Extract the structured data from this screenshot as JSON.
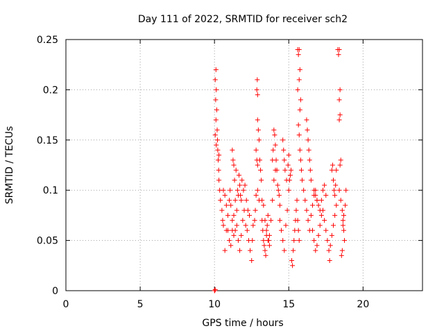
{
  "chart_data": {
    "type": "scatter",
    "title": "Day 111 of 2022, SRMTID for receiver sch2",
    "xlabel": "GPS time / hours",
    "ylabel": "SRMTID / TECUs",
    "xlim": [
      0,
      24
    ],
    "ylim": [
      0,
      0.25
    ],
    "xticks": [
      0,
      5,
      10,
      15,
      20
    ],
    "yticks": [
      0,
      0.05,
      0.1,
      0.15,
      0.2,
      0.25
    ],
    "xtick_labels": [
      "0",
      "5",
      "10",
      "15",
      "20"
    ],
    "ytick_labels": [
      "0",
      "0.05",
      "0.1",
      "0.15",
      "0.2",
      "0.25"
    ],
    "grid": true,
    "marker": "+",
    "color": "#ff0000",
    "series": [
      {
        "name": "SRMTID sch2",
        "points": [
          [
            10.0,
            0.0
          ],
          [
            10.02,
            0.0
          ],
          [
            10.05,
            0.001
          ],
          [
            10.05,
            0.21
          ],
          [
            10.08,
            0.19
          ],
          [
            10.1,
            0.22
          ],
          [
            10.12,
            0.2
          ],
          [
            10.15,
            0.18
          ],
          [
            10.18,
            0.16
          ],
          [
            10.1,
            0.17
          ],
          [
            10.2,
            0.15
          ],
          [
            10.22,
            0.14
          ],
          [
            10.25,
            0.13
          ],
          [
            10.28,
            0.12
          ],
          [
            10.3,
            0.11
          ],
          [
            10.35,
            0.1
          ],
          [
            10.4,
            0.09
          ],
          [
            10.05,
            0.155
          ],
          [
            10.12,
            0.145
          ],
          [
            10.3,
            0.135
          ],
          [
            10.5,
            0.08
          ],
          [
            10.55,
            0.07
          ],
          [
            10.6,
            0.065
          ],
          [
            10.7,
            0.04
          ],
          [
            10.8,
            0.06
          ],
          [
            10.9,
            0.075
          ],
          [
            11.0,
            0.09
          ],
          [
            11.05,
            0.1
          ],
          [
            11.1,
            0.085
          ],
          [
            11.2,
            0.07
          ],
          [
            11.3,
            0.055
          ],
          [
            11.4,
            0.06
          ],
          [
            11.5,
            0.08
          ],
          [
            11.6,
            0.095
          ],
          [
            11.7,
            0.105
          ],
          [
            11.8,
            0.09
          ],
          [
            10.6,
            0.1
          ],
          [
            10.7,
            0.095
          ],
          [
            10.8,
            0.085
          ],
          [
            10.9,
            0.06
          ],
          [
            11.0,
            0.05
          ],
          [
            11.1,
            0.045
          ],
          [
            11.2,
            0.06
          ],
          [
            11.3,
            0.075
          ],
          [
            11.4,
            0.09
          ],
          [
            11.5,
            0.065
          ],
          [
            11.6,
            0.05
          ],
          [
            11.7,
            0.04
          ],
          [
            11.8,
            0.055
          ],
          [
            11.9,
            0.07
          ],
          [
            12.0,
            0.08
          ],
          [
            12.1,
            0.065
          ],
          [
            11.2,
            0.14
          ],
          [
            11.25,
            0.13
          ],
          [
            11.3,
            0.125
          ],
          [
            11.35,
            0.11
          ],
          [
            11.45,
            0.12
          ],
          [
            11.55,
            0.1
          ],
          [
            11.65,
            0.115
          ],
          [
            11.75,
            0.095
          ],
          [
            11.85,
            0.11
          ],
          [
            11.95,
            0.1
          ],
          [
            12.05,
            0.105
          ],
          [
            12.15,
            0.09
          ],
          [
            12.25,
            0.08
          ],
          [
            12.35,
            0.075
          ],
          [
            12.2,
            0.06
          ],
          [
            12.3,
            0.05
          ],
          [
            12.4,
            0.04
          ],
          [
            12.5,
            0.03
          ],
          [
            12.55,
            0.05
          ],
          [
            12.6,
            0.065
          ],
          [
            12.7,
            0.07
          ],
          [
            12.75,
            0.08
          ],
          [
            12.8,
            0.095
          ],
          [
            12.9,
            0.1
          ],
          [
            13.0,
            0.09
          ],
          [
            12.85,
            0.2
          ],
          [
            12.9,
            0.195
          ],
          [
            12.88,
            0.21
          ],
          [
            12.9,
            0.17
          ],
          [
            12.95,
            0.16
          ],
          [
            13.0,
            0.15
          ],
          [
            13.05,
            0.13
          ],
          [
            13.1,
            0.12
          ],
          [
            13.15,
            0.11
          ],
          [
            12.8,
            0.14
          ],
          [
            12.85,
            0.13
          ],
          [
            12.9,
            0.125
          ],
          [
            13.2,
            0.07
          ],
          [
            13.25,
            0.06
          ],
          [
            13.3,
            0.05
          ],
          [
            13.35,
            0.045
          ],
          [
            13.4,
            0.04
          ],
          [
            13.45,
            0.035
          ],
          [
            13.5,
            0.055
          ],
          [
            13.55,
            0.065
          ],
          [
            13.6,
            0.075
          ],
          [
            13.65,
            0.05
          ],
          [
            13.7,
            0.045
          ],
          [
            13.2,
            0.09
          ],
          [
            13.3,
            0.085
          ],
          [
            13.4,
            0.07
          ],
          [
            13.5,
            0.06
          ],
          [
            13.6,
            0.05
          ],
          [
            13.7,
            0.055
          ],
          [
            13.8,
            0.07
          ],
          [
            13.9,
            0.09
          ],
          [
            14.0,
            0.11
          ],
          [
            14.1,
            0.12
          ],
          [
            13.9,
            0.13
          ],
          [
            13.95,
            0.14
          ],
          [
            14.0,
            0.16
          ],
          [
            14.05,
            0.155
          ],
          [
            14.1,
            0.145
          ],
          [
            14.15,
            0.13
          ],
          [
            14.2,
            0.12
          ],
          [
            14.25,
            0.105
          ],
          [
            14.3,
            0.1
          ],
          [
            14.35,
            0.095
          ],
          [
            14.4,
            0.085
          ],
          [
            14.4,
            0.07
          ],
          [
            14.5,
            0.06
          ],
          [
            14.6,
            0.05
          ],
          [
            14.7,
            0.04
          ],
          [
            14.8,
            0.065
          ],
          [
            14.9,
            0.08
          ],
          [
            15.0,
            0.1
          ],
          [
            15.05,
            0.11
          ],
          [
            15.1,
            0.115
          ],
          [
            15.15,
            0.12
          ],
          [
            14.6,
            0.15
          ],
          [
            14.65,
            0.14
          ],
          [
            14.7,
            0.13
          ],
          [
            14.75,
            0.12
          ],
          [
            14.85,
            0.11
          ],
          [
            14.95,
            0.125
          ],
          [
            15.0,
            0.135
          ],
          [
            15.2,
            0.03
          ],
          [
            15.25,
            0.025
          ],
          [
            15.3,
            0.04
          ],
          [
            15.35,
            0.05
          ],
          [
            15.4,
            0.06
          ],
          [
            15.45,
            0.07
          ],
          [
            15.5,
            0.08
          ],
          [
            15.55,
            0.09
          ],
          [
            15.6,
            0.07
          ],
          [
            15.65,
            0.06
          ],
          [
            15.7,
            0.05
          ],
          [
            15.6,
            0.24
          ],
          [
            15.65,
            0.235
          ],
          [
            15.7,
            0.24
          ],
          [
            15.75,
            0.22
          ],
          [
            15.6,
            0.2
          ],
          [
            15.7,
            0.21
          ],
          [
            15.75,
            0.18
          ],
          [
            15.8,
            0.19
          ],
          [
            15.65,
            0.165
          ],
          [
            15.7,
            0.155
          ],
          [
            15.75,
            0.14
          ],
          [
            15.8,
            0.13
          ],
          [
            15.85,
            0.12
          ],
          [
            15.9,
            0.11
          ],
          [
            16.0,
            0.1
          ],
          [
            16.1,
            0.09
          ],
          [
            16.2,
            0.08
          ],
          [
            16.3,
            0.07
          ],
          [
            16.4,
            0.06
          ],
          [
            16.5,
            0.075
          ],
          [
            16.6,
            0.085
          ],
          [
            16.7,
            0.095
          ],
          [
            16.8,
            0.1
          ],
          [
            16.9,
            0.09
          ],
          [
            16.2,
            0.17
          ],
          [
            16.25,
            0.16
          ],
          [
            16.3,
            0.15
          ],
          [
            16.35,
            0.14
          ],
          [
            16.4,
            0.13
          ],
          [
            16.45,
            0.12
          ],
          [
            16.5,
            0.11
          ],
          [
            16.6,
            0.06
          ],
          [
            16.7,
            0.05
          ],
          [
            16.8,
            0.04
          ],
          [
            16.9,
            0.045
          ],
          [
            17.0,
            0.055
          ],
          [
            17.1,
            0.065
          ],
          [
            17.2,
            0.075
          ],
          [
            17.3,
            0.08
          ],
          [
            17.4,
            0.07
          ],
          [
            16.7,
            0.1
          ],
          [
            16.8,
            0.095
          ],
          [
            16.9,
            0.09
          ],
          [
            17.0,
            0.085
          ],
          [
            17.1,
            0.08
          ],
          [
            17.2,
            0.09
          ],
          [
            17.3,
            0.1
          ],
          [
            17.4,
            0.105
          ],
          [
            17.5,
            0.095
          ],
          [
            17.5,
            0.06
          ],
          [
            17.6,
            0.05
          ],
          [
            17.7,
            0.04
          ],
          [
            17.75,
            0.03
          ],
          [
            17.8,
            0.045
          ],
          [
            17.9,
            0.055
          ],
          [
            18.0,
            0.065
          ],
          [
            18.1,
            0.075
          ],
          [
            18.2,
            0.085
          ],
          [
            17.9,
            0.12
          ],
          [
            17.95,
            0.125
          ],
          [
            18.0,
            0.11
          ],
          [
            18.05,
            0.1
          ],
          [
            18.1,
            0.095
          ],
          [
            18.15,
            0.105
          ],
          [
            18.2,
            0.12
          ],
          [
            18.3,
            0.24
          ],
          [
            18.35,
            0.235
          ],
          [
            18.4,
            0.24
          ],
          [
            18.45,
            0.2
          ],
          [
            18.4,
            0.19
          ],
          [
            18.45,
            0.175
          ],
          [
            18.4,
            0.17
          ],
          [
            18.5,
            0.13
          ],
          [
            18.45,
            0.125
          ],
          [
            18.4,
            0.1
          ],
          [
            18.5,
            0.09
          ],
          [
            18.6,
            0.08
          ],
          [
            18.65,
            0.07
          ],
          [
            18.7,
            0.06
          ],
          [
            18.75,
            0.05
          ],
          [
            18.6,
            0.04
          ],
          [
            18.55,
            0.035
          ],
          [
            18.65,
            0.065
          ],
          [
            18.7,
            0.075
          ],
          [
            18.8,
            0.085
          ],
          [
            18.85,
            0.1
          ]
        ]
      }
    ]
  }
}
